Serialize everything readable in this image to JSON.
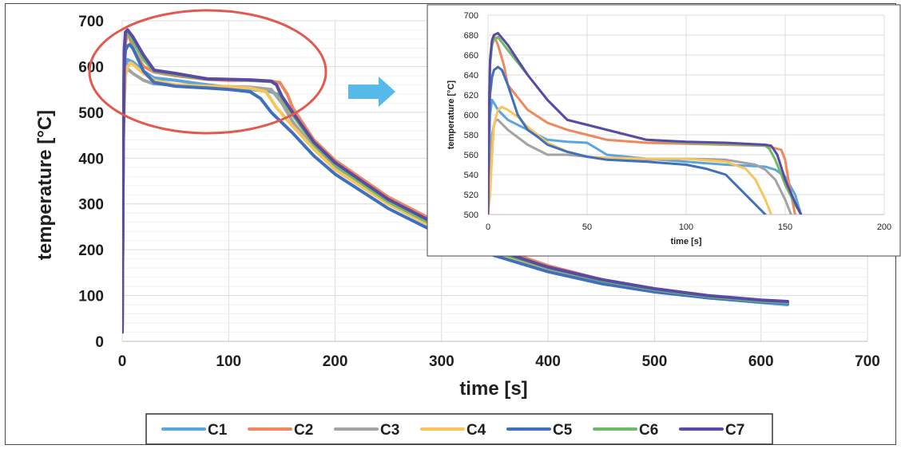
{
  "colors": {
    "C1": "#5aa5dc",
    "C2": "#f0875e",
    "C3": "#a3a3a3",
    "C4": "#f8c45c",
    "C5": "#3f6fbd",
    "C6": "#6cba6a",
    "C7": "#5a4aa6",
    "highlight_ellipse": "#e05a4f",
    "arrow": "#55b9ea",
    "grid": "#dcdcdc"
  },
  "chart_data": [
    {
      "id": "main",
      "type": "line",
      "title": "",
      "xlabel": "time [s]",
      "ylabel": "temperature [°C]",
      "xlim": [
        0,
        700
      ],
      "ylim": [
        0,
        700
      ],
      "xticks": [
        0,
        100,
        200,
        300,
        400,
        500,
        600,
        700
      ],
      "yticks": [
        0,
        100,
        200,
        300,
        400,
        500,
        600,
        700
      ],
      "grid": true,
      "legend": "bottom",
      "series": [
        {
          "name": "C1",
          "x": [
            0,
            1,
            2,
            3,
            5,
            10,
            20,
            30,
            50,
            80,
            100,
            120,
            140,
            150,
            160,
            180,
            200,
            250,
            300,
            350,
            400,
            450,
            500,
            550,
            600,
            625
          ],
          "y": [
            20,
            420,
            560,
            600,
            615,
            610,
            590,
            575,
            570,
            560,
            555,
            550,
            545,
            535,
            500,
            430,
            380,
            300,
            240,
            190,
            155,
            130,
            110,
            95,
            85,
            80
          ]
        },
        {
          "name": "C2",
          "x": [
            0,
            1,
            2,
            3,
            5,
            10,
            20,
            30,
            50,
            80,
            100,
            120,
            140,
            148,
            155,
            160,
            180,
            200,
            250,
            300,
            350,
            400,
            450,
            500,
            550,
            600,
            625
          ],
          "y": [
            20,
            430,
            600,
            650,
            678,
            640,
            600,
            588,
            580,
            572,
            570,
            570,
            568,
            565,
            540,
            510,
            440,
            395,
            315,
            255,
            205,
            165,
            135,
            113,
            98,
            88,
            85
          ]
        },
        {
          "name": "C3",
          "x": [
            0,
            1,
            2,
            3,
            5,
            10,
            20,
            30,
            50,
            80,
            100,
            120,
            140,
            150,
            160,
            180,
            200,
            250,
            300,
            350,
            400,
            450,
            500,
            550,
            600,
            625
          ],
          "y": [
            20,
            420,
            560,
            585,
            595,
            585,
            570,
            562,
            560,
            557,
            556,
            555,
            550,
            520,
            480,
            420,
            375,
            300,
            240,
            190,
            155,
            130,
            110,
            96,
            87,
            84
          ]
        },
        {
          "name": "C4",
          "x": [
            0,
            1,
            2,
            3,
            5,
            8,
            10,
            20,
            30,
            50,
            80,
            100,
            120,
            135,
            145,
            160,
            180,
            200,
            250,
            300,
            350,
            400,
            450,
            500,
            550,
            600,
            625
          ],
          "y": [
            20,
            420,
            520,
            580,
            600,
            608,
            605,
            585,
            570,
            560,
            557,
            556,
            553,
            545,
            510,
            470,
            420,
            375,
            300,
            240,
            192,
            157,
            130,
            111,
            97,
            88,
            85
          ]
        },
        {
          "name": "C5",
          "x": [
            0,
            1,
            2,
            3,
            5,
            7,
            10,
            20,
            30,
            50,
            80,
            100,
            120,
            130,
            140,
            160,
            180,
            200,
            250,
            300,
            350,
            400,
            450,
            500,
            550,
            600,
            625
          ],
          "y": [
            20,
            430,
            600,
            635,
            645,
            648,
            640,
            590,
            565,
            557,
            553,
            550,
            545,
            530,
            500,
            455,
            405,
            365,
            290,
            232,
            187,
            152,
            126,
            108,
            95,
            86,
            83
          ]
        },
        {
          "name": "C6",
          "x": [
            0,
            1,
            2,
            3,
            5,
            10,
            20,
            30,
            50,
            80,
            100,
            120,
            140,
            145,
            150,
            160,
            180,
            200,
            250,
            300,
            350,
            400,
            450,
            500,
            550,
            600,
            625
          ],
          "y": [
            20,
            440,
            630,
            665,
            675,
            655,
            615,
            590,
            582,
            573,
            572,
            570,
            567,
            560,
            530,
            495,
            430,
            385,
            305,
            245,
            196,
            160,
            133,
            113,
            98,
            88,
            85
          ]
        },
        {
          "name": "C7",
          "x": [
            0,
            1,
            2,
            3,
            5,
            10,
            20,
            30,
            50,
            80,
            100,
            120,
            140,
            145,
            150,
            160,
            180,
            200,
            250,
            300,
            350,
            400,
            450,
            500,
            550,
            600,
            625
          ],
          "y": [
            20,
            440,
            640,
            675,
            680,
            665,
            625,
            592,
            585,
            573,
            572,
            571,
            568,
            560,
            535,
            500,
            435,
            390,
            310,
            250,
            200,
            162,
            135,
            115,
            100,
            90,
            87
          ]
        }
      ]
    },
    {
      "id": "inset",
      "type": "line",
      "title": "",
      "xlabel": "time [s]",
      "ylabel": "temperature [°C]",
      "xlim": [
        0,
        200
      ],
      "ylim": [
        500,
        700
      ],
      "xticks": [
        0,
        50,
        100,
        150,
        200
      ],
      "yticks": [
        500,
        520,
        540,
        560,
        580,
        600,
        620,
        640,
        660,
        680,
        700
      ],
      "grid": true,
      "legend": "none",
      "series": [
        {
          "name": "C1",
          "x": [
            0,
            0.5,
            1,
            2,
            3,
            5,
            10,
            20,
            30,
            40,
            50,
            60,
            80,
            100,
            120,
            140,
            145,
            150,
            155,
            158
          ],
          "y": [
            500,
            560,
            600,
            615,
            612,
            605,
            595,
            585,
            575,
            573,
            572,
            560,
            556,
            553,
            550,
            548,
            545,
            538,
            520,
            500
          ]
        },
        {
          "name": "C2",
          "x": [
            0,
            0.5,
            1,
            2,
            3,
            5,
            8,
            10,
            20,
            30,
            40,
            50,
            60,
            80,
            100,
            120,
            140,
            148,
            150,
            152,
            155
          ],
          "y": [
            500,
            600,
            650,
            675,
            680,
            670,
            650,
            630,
            605,
            592,
            585,
            580,
            575,
            572,
            571,
            570,
            569,
            565,
            555,
            530,
            500
          ]
        },
        {
          "name": "C3",
          "x": [
            0,
            1,
            2,
            3,
            4,
            5,
            10,
            20,
            30,
            40,
            50,
            60,
            80,
            100,
            120,
            135,
            140,
            145,
            150,
            153
          ],
          "y": [
            500,
            555,
            580,
            590,
            595,
            595,
            585,
            570,
            560,
            560,
            558,
            556,
            555,
            556,
            555,
            550,
            545,
            535,
            515,
            500
          ]
        },
        {
          "name": "C4",
          "x": [
            0,
            1,
            2,
            3,
            5,
            7,
            10,
            15,
            20,
            30,
            40,
            50,
            60,
            80,
            100,
            120,
            130,
            135,
            140,
            143
          ],
          "y": [
            500,
            520,
            560,
            590,
            605,
            608,
            605,
            598,
            588,
            572,
            563,
            558,
            557,
            556,
            556,
            553,
            546,
            535,
            515,
            500
          ]
        },
        {
          "name": "C5",
          "x": [
            0,
            0.5,
            1,
            2,
            3,
            5,
            7,
            10,
            15,
            20,
            25,
            30,
            40,
            50,
            60,
            80,
            100,
            110,
            120,
            125,
            130,
            135,
            140
          ],
          "y": [
            500,
            580,
            620,
            638,
            645,
            648,
            645,
            630,
            600,
            585,
            578,
            570,
            563,
            558,
            555,
            553,
            550,
            546,
            540,
            530,
            520,
            510,
            500
          ]
        },
        {
          "name": "C6",
          "x": [
            0,
            0.5,
            1,
            2,
            3,
            5,
            10,
            20,
            30,
            40,
            50,
            60,
            80,
            100,
            120,
            140,
            142,
            145,
            150,
            155,
            158
          ],
          "y": [
            500,
            600,
            650,
            670,
            675,
            678,
            665,
            640,
            615,
            595,
            590,
            585,
            575,
            572,
            571,
            569,
            566,
            555,
            530,
            510,
            500
          ]
        },
        {
          "name": "C7",
          "x": [
            0,
            0.5,
            1,
            2,
            3,
            5,
            10,
            20,
            30,
            40,
            50,
            60,
            80,
            100,
            120,
            140,
            143,
            146,
            150,
            155,
            158
          ],
          "y": [
            500,
            600,
            655,
            675,
            680,
            682,
            670,
            640,
            615,
            595,
            590,
            585,
            575,
            573,
            572,
            570,
            569,
            560,
            535,
            512,
            500
          ]
        }
      ]
    }
  ]
}
